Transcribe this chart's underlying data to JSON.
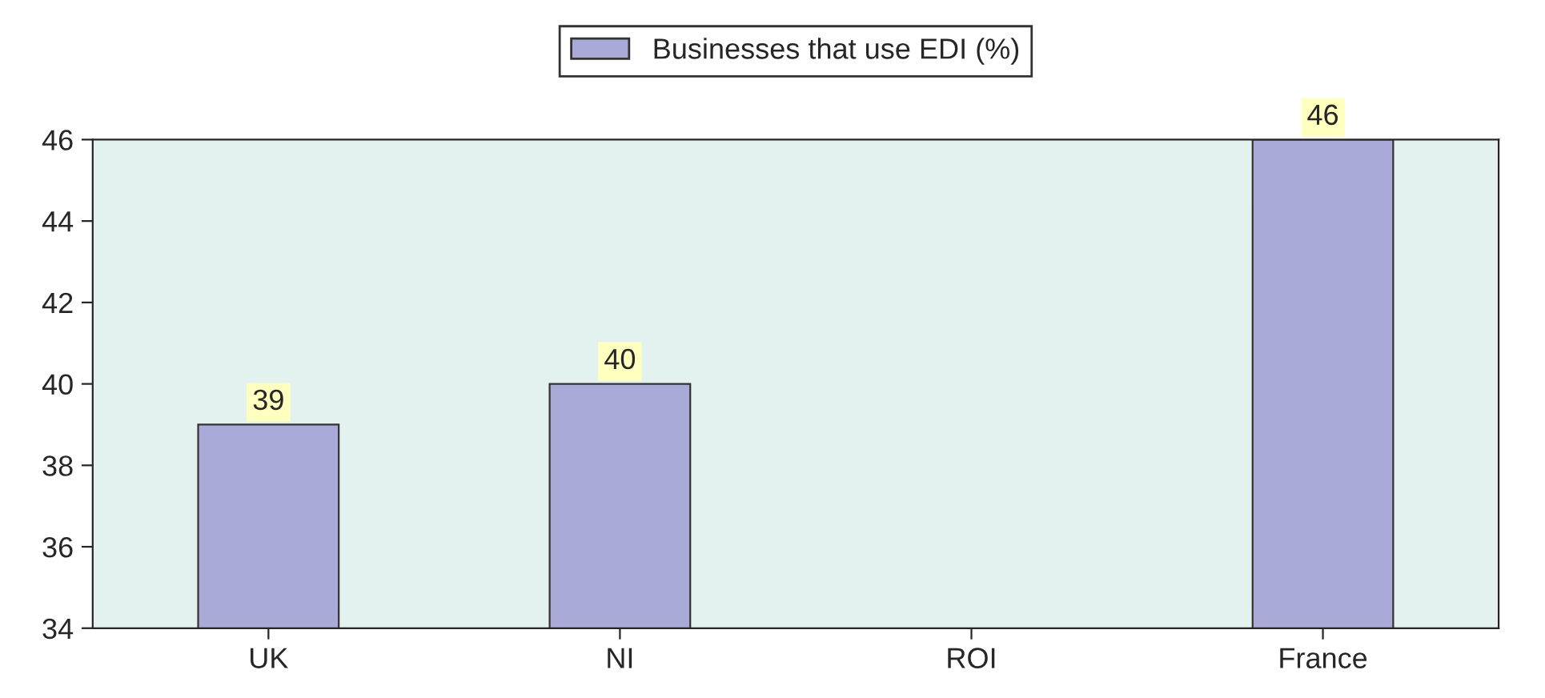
{
  "chart_data": {
    "type": "bar",
    "categories": [
      "UK",
      "NI",
      "ROI",
      "France"
    ],
    "series": [
      {
        "name": "Businesses that use EDI (%)",
        "color": "#aaaad8",
        "values": [
          39,
          40,
          null,
          46
        ]
      }
    ],
    "ylim": [
      34,
      46
    ],
    "yticks": [
      34,
      36,
      38,
      40,
      42,
      44,
      46
    ],
    "data_labels": true,
    "grid": false,
    "legend": "top"
  }
}
